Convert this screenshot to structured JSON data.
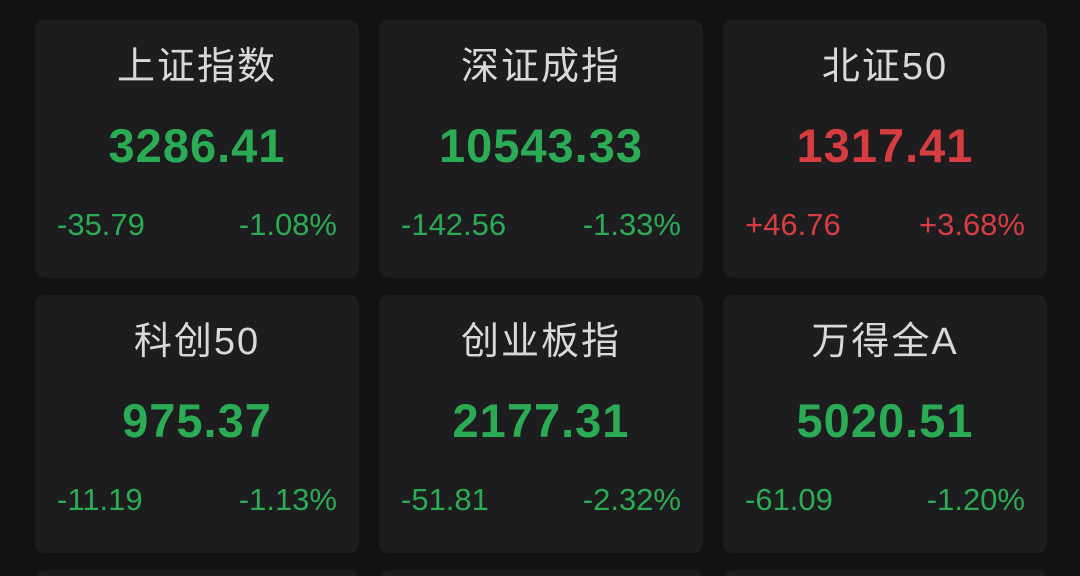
{
  "app": {
    "description": "stock-index-quote-board",
    "colors": {
      "background": "#121212",
      "card_background": "#1d1d1f",
      "title_text": "#d9d9d9",
      "up_red": "#d73c41",
      "down_green": "#2bab54"
    }
  },
  "tiles": [
    {
      "name": "上证指数",
      "value": "3286.41",
      "change": "-35.79",
      "change_pct": "-1.08%",
      "direction": "down"
    },
    {
      "name": "深证成指",
      "value": "10543.33",
      "change": "-142.56",
      "change_pct": "-1.33%",
      "direction": "down"
    },
    {
      "name": "北证50",
      "value": "1317.41",
      "change": "+46.76",
      "change_pct": "+3.68%",
      "direction": "up"
    },
    {
      "name": "科创50",
      "value": "975.37",
      "change": "-11.19",
      "change_pct": "-1.13%",
      "direction": "down"
    },
    {
      "name": "创业板指",
      "value": "2177.31",
      "change": "-51.81",
      "change_pct": "-2.32%",
      "direction": "down"
    },
    {
      "name": "万得全A",
      "value": "5020.51",
      "change": "-61.09",
      "change_pct": "-1.20%",
      "direction": "down"
    }
  ]
}
